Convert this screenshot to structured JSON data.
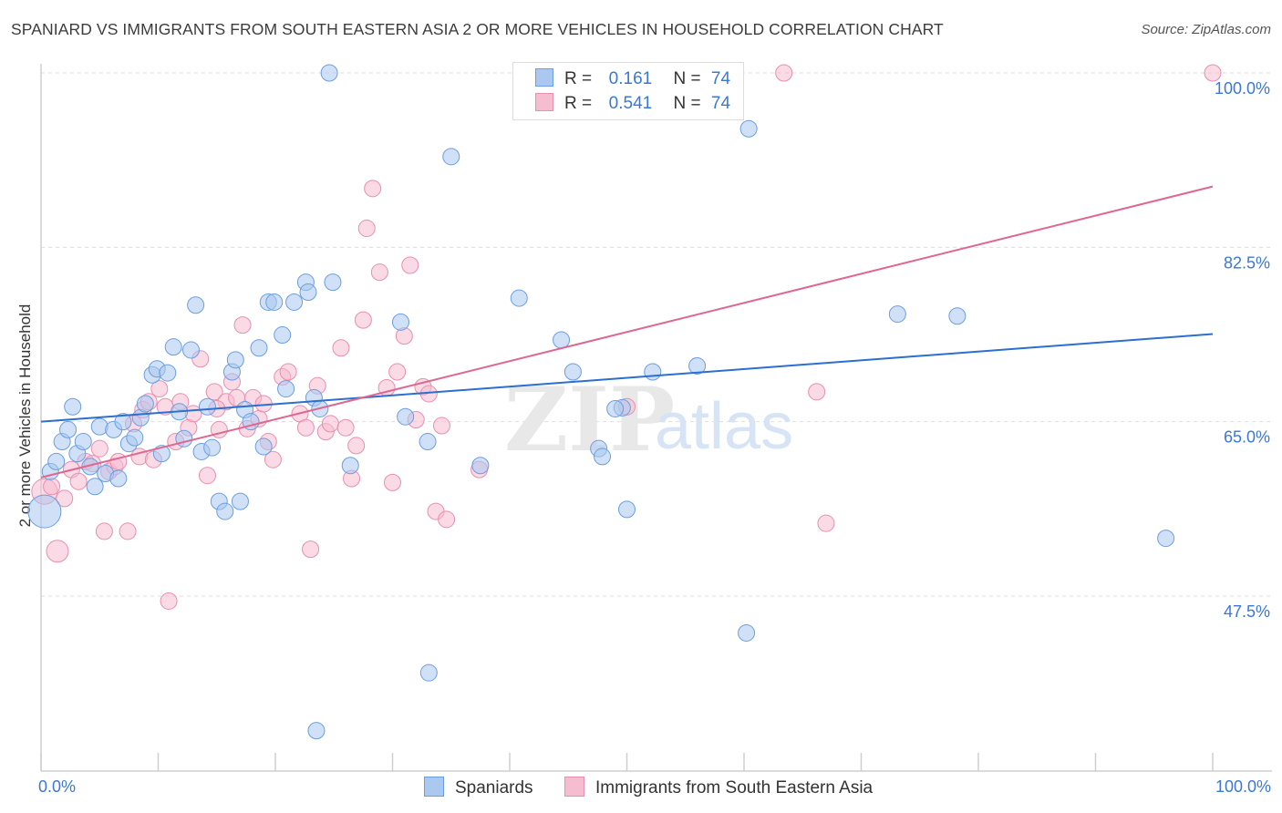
{
  "title": "SPANIARD VS IMMIGRANTS FROM SOUTH EASTERN ASIA 2 OR MORE VEHICLES IN HOUSEHOLD CORRELATION CHART",
  "source": "Source: ZipAtlas.com",
  "watermark": {
    "zip": "ZIP",
    "atlas": "atlas"
  },
  "legend": {
    "items": [
      {
        "r_label": "R =",
        "r_value": "0.161",
        "n_label": "N =",
        "n_value": "74",
        "fill": "#aac8f0",
        "stroke": "#6b9ee0"
      },
      {
        "r_label": "R =",
        "r_value": "0.541",
        "n_label": "N =",
        "n_value": "74",
        "fill": "#f6bcd0",
        "stroke": "#e88fb0"
      }
    ]
  },
  "colors": {
    "blue_line": "#2b6fd0",
    "pink_line": "#e06690",
    "blue_fill": "#aac8f0",
    "pink_fill": "#f6bcd0",
    "tick_text": "#3a78d6"
  },
  "chart_data": {
    "type": "scatter",
    "xlabel": "",
    "ylabel": "2 or more Vehicles in Household",
    "x_range": [
      0,
      100
    ],
    "ylim": [
      30,
      102
    ],
    "x_tick_labels": {
      "left": "0.0%",
      "right": "100.0%"
    },
    "y_ticks": [
      {
        "value": 100.0,
        "label": "100.0%"
      },
      {
        "value": 82.5,
        "label": "82.5%"
      },
      {
        "value": 65.0,
        "label": "65.0%"
      },
      {
        "value": 47.5,
        "label": "47.5%"
      }
    ],
    "grid": true,
    "legend_position": "bottom",
    "series": [
      {
        "name": "Spaniards",
        "color": "#aac8f0",
        "trend": {
          "x": [
            0,
            100
          ],
          "y": [
            65.0,
            73.8
          ]
        },
        "points": [
          {
            "x": 0.3,
            "y": 56.0,
            "s": 18
          },
          {
            "x": 0.8,
            "y": 60.0
          },
          {
            "x": 1.3,
            "y": 61.0
          },
          {
            "x": 1.8,
            "y": 63.0
          },
          {
            "x": 2.3,
            "y": 64.2
          },
          {
            "x": 2.7,
            "y": 66.5
          },
          {
            "x": 3.1,
            "y": 61.8
          },
          {
            "x": 3.6,
            "y": 63.0
          },
          {
            "x": 4.2,
            "y": 60.5
          },
          {
            "x": 4.6,
            "y": 58.5
          },
          {
            "x": 5.0,
            "y": 64.5
          },
          {
            "x": 5.5,
            "y": 59.8
          },
          {
            "x": 6.2,
            "y": 64.2
          },
          {
            "x": 6.6,
            "y": 59.3
          },
          {
            "x": 7.0,
            "y": 65.0
          },
          {
            "x": 7.5,
            "y": 62.8
          },
          {
            "x": 8.0,
            "y": 63.4
          },
          {
            "x": 8.5,
            "y": 65.4
          },
          {
            "x": 8.9,
            "y": 66.8
          },
          {
            "x": 9.5,
            "y": 69.7
          },
          {
            "x": 9.9,
            "y": 70.3
          },
          {
            "x": 10.3,
            "y": 61.8
          },
          {
            "x": 10.8,
            "y": 69.9
          },
          {
            "x": 11.3,
            "y": 72.5
          },
          {
            "x": 11.8,
            "y": 66.0
          },
          {
            "x": 12.2,
            "y": 63.3
          },
          {
            "x": 12.8,
            "y": 72.2
          },
          {
            "x": 13.2,
            "y": 76.7
          },
          {
            "x": 13.7,
            "y": 62.0
          },
          {
            "x": 14.2,
            "y": 66.5
          },
          {
            "x": 14.6,
            "y": 62.4
          },
          {
            "x": 15.2,
            "y": 57.0
          },
          {
            "x": 15.7,
            "y": 56.0
          },
          {
            "x": 16.3,
            "y": 70.0
          },
          {
            "x": 16.6,
            "y": 71.2
          },
          {
            "x": 17.0,
            "y": 57.0
          },
          {
            "x": 17.4,
            "y": 66.2
          },
          {
            "x": 17.9,
            "y": 65.0
          },
          {
            "x": 18.6,
            "y": 72.4
          },
          {
            "x": 19.0,
            "y": 62.5
          },
          {
            "x": 19.4,
            "y": 77.0
          },
          {
            "x": 19.9,
            "y": 77.0
          },
          {
            "x": 20.6,
            "y": 73.7
          },
          {
            "x": 20.9,
            "y": 68.3
          },
          {
            "x": 21.6,
            "y": 77.0
          },
          {
            "x": 22.6,
            "y": 79.0
          },
          {
            "x": 22.8,
            "y": 78.0
          },
          {
            "x": 23.3,
            "y": 67.4
          },
          {
            "x": 23.5,
            "y": 34.0
          },
          {
            "x": 23.8,
            "y": 66.3
          },
          {
            "x": 24.6,
            "y": 100.0
          },
          {
            "x": 24.9,
            "y": 79.0
          },
          {
            "x": 26.4,
            "y": 60.6
          },
          {
            "x": 30.7,
            "y": 75.0
          },
          {
            "x": 31.1,
            "y": 65.5
          },
          {
            "x": 33.0,
            "y": 63.0
          },
          {
            "x": 33.1,
            "y": 39.8
          },
          {
            "x": 35.0,
            "y": 91.6
          },
          {
            "x": 37.5,
            "y": 60.6
          },
          {
            "x": 40.8,
            "y": 77.4
          },
          {
            "x": 44.4,
            "y": 73.2
          },
          {
            "x": 45.4,
            "y": 70.0
          },
          {
            "x": 47.6,
            "y": 62.3
          },
          {
            "x": 47.9,
            "y": 61.5
          },
          {
            "x": 49.6,
            "y": 66.4
          },
          {
            "x": 50.0,
            "y": 56.2
          },
          {
            "x": 52.2,
            "y": 70.0
          },
          {
            "x": 56.0,
            "y": 70.6
          },
          {
            "x": 60.2,
            "y": 43.8
          },
          {
            "x": 60.4,
            "y": 94.4
          },
          {
            "x": 73.1,
            "y": 75.8
          },
          {
            "x": 78.2,
            "y": 75.6
          },
          {
            "x": 96.0,
            "y": 53.3
          },
          {
            "x": 49.0,
            "y": 66.3
          }
        ]
      },
      {
        "name": "Immigrants from South Eastern Asia",
        "color": "#f6bcd0",
        "trend": {
          "x": [
            0,
            100
          ],
          "y": [
            59.4,
            88.6
          ]
        },
        "points": [
          {
            "x": 0.3,
            "y": 58.0,
            "s": 14
          },
          {
            "x": 0.9,
            "y": 58.5
          },
          {
            "x": 1.4,
            "y": 52.0,
            "s": 12
          },
          {
            "x": 2.0,
            "y": 57.3
          },
          {
            "x": 2.6,
            "y": 60.2
          },
          {
            "x": 3.2,
            "y": 59.0
          },
          {
            "x": 3.8,
            "y": 61.0
          },
          {
            "x": 4.4,
            "y": 60.8
          },
          {
            "x": 5.0,
            "y": 62.3
          },
          {
            "x": 5.4,
            "y": 54.0
          },
          {
            "x": 5.8,
            "y": 60.0
          },
          {
            "x": 6.3,
            "y": 60.5
          },
          {
            "x": 6.6,
            "y": 61.0
          },
          {
            "x": 7.4,
            "y": 54.0
          },
          {
            "x": 7.9,
            "y": 64.8
          },
          {
            "x": 8.4,
            "y": 61.5
          },
          {
            "x": 8.7,
            "y": 66.2
          },
          {
            "x": 9.2,
            "y": 67.0
          },
          {
            "x": 9.6,
            "y": 61.2
          },
          {
            "x": 10.1,
            "y": 68.3
          },
          {
            "x": 10.6,
            "y": 66.5
          },
          {
            "x": 10.9,
            "y": 47.0
          },
          {
            "x": 11.5,
            "y": 63.0
          },
          {
            "x": 11.9,
            "y": 67.0
          },
          {
            "x": 12.6,
            "y": 64.4
          },
          {
            "x": 13.0,
            "y": 65.8
          },
          {
            "x": 13.6,
            "y": 71.3
          },
          {
            "x": 14.2,
            "y": 59.6
          },
          {
            "x": 14.8,
            "y": 68.0
          },
          {
            "x": 15.2,
            "y": 64.2
          },
          {
            "x": 15.8,
            "y": 67.0
          },
          {
            "x": 16.3,
            "y": 69.0
          },
          {
            "x": 16.7,
            "y": 67.4
          },
          {
            "x": 17.2,
            "y": 74.7
          },
          {
            "x": 17.6,
            "y": 64.3
          },
          {
            "x": 18.1,
            "y": 67.4
          },
          {
            "x": 18.6,
            "y": 65.3
          },
          {
            "x": 19.0,
            "y": 66.8
          },
          {
            "x": 19.4,
            "y": 63.0
          },
          {
            "x": 19.8,
            "y": 61.2
          },
          {
            "x": 20.6,
            "y": 69.5
          },
          {
            "x": 21.1,
            "y": 70.0
          },
          {
            "x": 22.1,
            "y": 65.8
          },
          {
            "x": 22.6,
            "y": 64.4
          },
          {
            "x": 23.0,
            "y": 52.2
          },
          {
            "x": 23.6,
            "y": 68.6
          },
          {
            "x": 24.3,
            "y": 64.0
          },
          {
            "x": 24.7,
            "y": 64.8
          },
          {
            "x": 25.6,
            "y": 72.4
          },
          {
            "x": 26.0,
            "y": 64.4
          },
          {
            "x": 26.5,
            "y": 59.3
          },
          {
            "x": 26.9,
            "y": 62.6
          },
          {
            "x": 27.5,
            "y": 75.2
          },
          {
            "x": 27.8,
            "y": 84.4
          },
          {
            "x": 28.3,
            "y": 88.4
          },
          {
            "x": 28.9,
            "y": 80.0
          },
          {
            "x": 29.5,
            "y": 68.4
          },
          {
            "x": 30.0,
            "y": 58.9
          },
          {
            "x": 30.4,
            "y": 70.0
          },
          {
            "x": 31.0,
            "y": 73.6
          },
          {
            "x": 31.5,
            "y": 80.7
          },
          {
            "x": 32.0,
            "y": 65.2
          },
          {
            "x": 32.6,
            "y": 68.5
          },
          {
            "x": 33.1,
            "y": 67.8
          },
          {
            "x": 33.7,
            "y": 56.0
          },
          {
            "x": 34.2,
            "y": 64.6
          },
          {
            "x": 34.6,
            "y": 55.2
          },
          {
            "x": 37.4,
            "y": 60.2
          },
          {
            "x": 50.0,
            "y": 66.5
          },
          {
            "x": 63.4,
            "y": 100.0
          },
          {
            "x": 66.2,
            "y": 68.0
          },
          {
            "x": 67.0,
            "y": 54.8
          },
          {
            "x": 100.0,
            "y": 100.0
          },
          {
            "x": 15.0,
            "y": 66.3
          }
        ]
      }
    ]
  }
}
